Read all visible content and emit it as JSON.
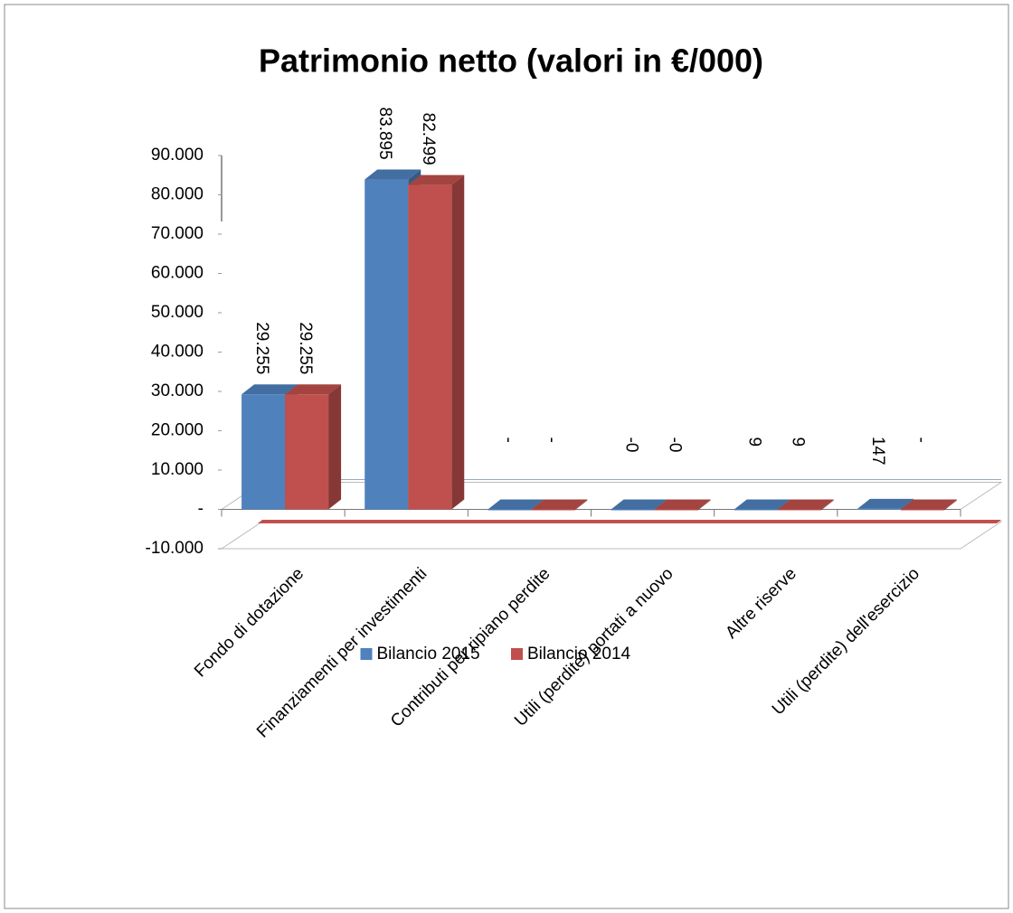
{
  "chart_data": {
    "type": "bar3d",
    "title": "Patrimonio netto (valori in €/000)",
    "categories": [
      "Fondo di dotazione",
      "Finanziamenti per investimenti",
      "Contributi per ripiano perdite",
      "Utili (perdite) portati a nuovo",
      "Altre riserve",
      "Utili (perdite) dell'esercizio"
    ],
    "series": [
      {
        "name": "Bilancio 2015",
        "color": "#4f81bd",
        "values": [
          29255,
          83895,
          0,
          -0.3,
          9,
          147
        ],
        "value_labels": [
          "29.255",
          "83.895",
          "-",
          "-0",
          "9",
          "147"
        ]
      },
      {
        "name": "Bilancio 2014",
        "color": "#c0504d",
        "values": [
          29255,
          82499,
          0,
          -0.3,
          9,
          0
        ],
        "value_labels": [
          "29.255",
          "82.499",
          "-",
          "-0",
          "9",
          "-"
        ]
      }
    ],
    "ylim": [
      -10000,
      90000
    ],
    "yticks": [
      {
        "value": -10000,
        "label": "-10.000"
      },
      {
        "value": 0,
        "label": "-"
      },
      {
        "value": 10000,
        "label": "10.000"
      },
      {
        "value": 20000,
        "label": "20.000"
      },
      {
        "value": 30000,
        "label": "30.000"
      },
      {
        "value": 40000,
        "label": "40.000"
      },
      {
        "value": 50000,
        "label": "50.000"
      },
      {
        "value": 60000,
        "label": "60.000"
      },
      {
        "value": 70000,
        "label": "70.000"
      },
      {
        "value": 80000,
        "label": "80.000"
      },
      {
        "value": 90000,
        "label": "90.000"
      }
    ],
    "legend": "bottom"
  }
}
